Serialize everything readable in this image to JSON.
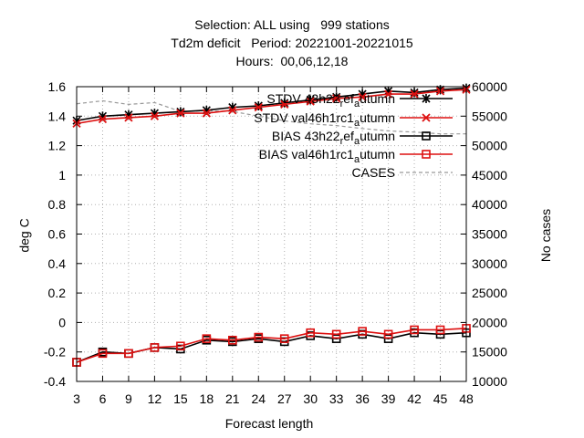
{
  "title": {
    "line1": "Selection: ALL using   999 stations",
    "line2": "Td2m deficit   Period: 20221001-20221015",
    "line3": "Hours:  00,06,12,18"
  },
  "chart_data": {
    "type": "line",
    "xlabel": "Forecast length",
    "ylabel": "deg C",
    "y2label": "No cases",
    "x": [
      3,
      6,
      9,
      12,
      15,
      18,
      21,
      24,
      27,
      30,
      33,
      36,
      39,
      42,
      45,
      48
    ],
    "xlim": [
      3,
      48
    ],
    "ylim": [
      -0.4,
      1.6
    ],
    "y2lim": [
      10000,
      60000
    ],
    "yticks": [
      "-0.4",
      "-0.2",
      "0",
      "0.2",
      "0.4",
      "0.6",
      "0.8",
      "1",
      "1.2",
      "1.4",
      "1.6"
    ],
    "y2ticks": [
      "10000",
      "15000",
      "20000",
      "25000",
      "30000",
      "35000",
      "40000",
      "45000",
      "50000",
      "55000",
      "60000"
    ],
    "grid": true,
    "legend_position": "top-right",
    "series": [
      {
        "name": "STDV 43h22_ref_autumn",
        "legend_parts": [
          "STDV 43h22",
          "r",
          "ef",
          "a",
          "utumn"
        ],
        "color": "#000000",
        "marker": "asterisk",
        "axis": "left",
        "values": [
          1.37,
          1.4,
          1.41,
          1.42,
          1.43,
          1.44,
          1.46,
          1.47,
          1.49,
          1.51,
          1.53,
          1.55,
          1.57,
          1.56,
          1.58,
          1.59
        ]
      },
      {
        "name": "STDV val46h1rc1_autumn",
        "legend_parts": [
          "STDV val46h1rc1",
          "a",
          "utumn"
        ],
        "color": "#dd1010",
        "marker": "cross",
        "axis": "left",
        "values": [
          1.35,
          1.38,
          1.39,
          1.4,
          1.42,
          1.42,
          1.44,
          1.46,
          1.48,
          1.5,
          1.52,
          1.53,
          1.55,
          1.55,
          1.57,
          1.58
        ]
      },
      {
        "name": "BIAS 43h22_ref_autumn",
        "legend_parts": [
          "BIAS 43h22",
          "r",
          "ef",
          "a",
          "utumn"
        ],
        "color": "#000000",
        "marker": "square",
        "axis": "left",
        "values": [
          -0.27,
          -0.2,
          -0.21,
          -0.17,
          -0.18,
          -0.12,
          -0.13,
          -0.11,
          -0.13,
          -0.09,
          -0.11,
          -0.08,
          -0.11,
          -0.07,
          -0.08,
          -0.07
        ]
      },
      {
        "name": "BIAS val46h1rc1_autumn",
        "legend_parts": [
          "BIAS val46h1rc1",
          "a",
          "utumn"
        ],
        "color": "#dd1010",
        "marker": "square",
        "axis": "left",
        "values": [
          -0.27,
          -0.21,
          -0.21,
          -0.17,
          -0.16,
          -0.11,
          -0.12,
          -0.1,
          -0.11,
          -0.07,
          -0.08,
          -0.06,
          -0.08,
          -0.05,
          -0.05,
          -0.04
        ]
      },
      {
        "name": "CASES",
        "legend_parts": [
          "CASES"
        ],
        "color": "#999999",
        "marker": "none",
        "dashed": true,
        "axis": "right",
        "values": [
          57100,
          57600,
          57000,
          57300,
          55800,
          55900,
          55800,
          55000,
          54200,
          53700,
          53400,
          52900,
          52500,
          52300,
          52000,
          52000
        ]
      }
    ]
  }
}
